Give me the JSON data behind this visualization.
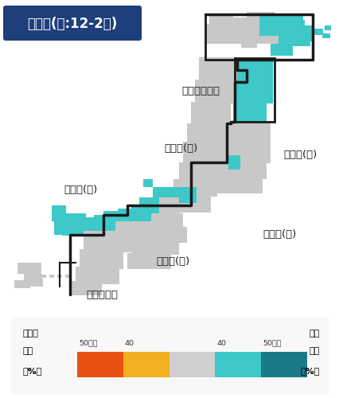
{
  "title": "降水量(冬:12-2月)",
  "title_bg": "#1e3f7a",
  "title_fg": "#ffffff",
  "background": "#ffffff",
  "gray": "#c8c8c8",
  "gray_light": "#d8d8d8",
  "cyan": "#3ec8c8",
  "dark_cyan": "#1a7a8a",
  "outline": "#1a1a1a",
  "legend_colors": [
    "#e85010",
    "#f0b020",
    "#d0d0d0",
    "#3ec8c8",
    "#1a7a8a"
  ],
  "legend_left1": "少ない",
  "legend_left2": "確率",
  "legend_left3": "（%）",
  "legend_right1": "多い",
  "legend_right2": "確率",
  "legend_right3": "（%）",
  "legend_top_labels": [
    "50以上",
    "40",
    "",
    "40",
    "50以上"
  ]
}
